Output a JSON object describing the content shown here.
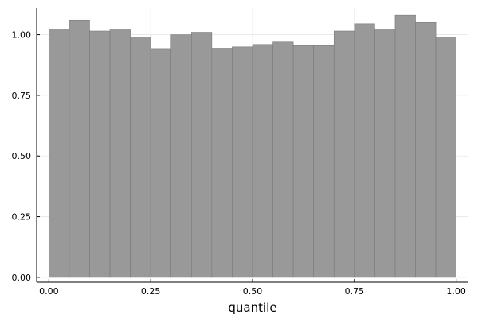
{
  "chart_data": {
    "type": "bar",
    "title": "",
    "xlabel": "quantile",
    "ylabel": "",
    "xlim": [
      -0.03,
      1.03
    ],
    "ylim": [
      -0.02,
      1.11
    ],
    "grid": true,
    "legend": "none",
    "bar_color": "#999999",
    "bar_edge_color": "#7a7a7a",
    "bin_edges": [
      0.0,
      0.05,
      0.1,
      0.15,
      0.2,
      0.25,
      0.3,
      0.35,
      0.4,
      0.45,
      0.5,
      0.55,
      0.6,
      0.65,
      0.7,
      0.75,
      0.8,
      0.85,
      0.9,
      0.95,
      1.0
    ],
    "values": [
      1.02,
      1.06,
      1.015,
      1.02,
      0.99,
      0.94,
      1.0,
      1.01,
      0.945,
      0.95,
      0.96,
      0.97,
      0.955,
      0.955,
      1.015,
      1.045,
      1.02,
      1.08,
      1.05,
      0.99
    ],
    "x_ticks": [
      0.0,
      0.25,
      0.5,
      0.75,
      1.0
    ],
    "x_tick_labels": [
      "0.00",
      "0.25",
      "0.50",
      "0.75",
      "1.00"
    ],
    "y_ticks": [
      0.0,
      0.25,
      0.5,
      0.75,
      1.0
    ],
    "y_tick_labels": [
      "0.00",
      "0.25",
      "0.50",
      "0.75",
      "1.00"
    ]
  }
}
